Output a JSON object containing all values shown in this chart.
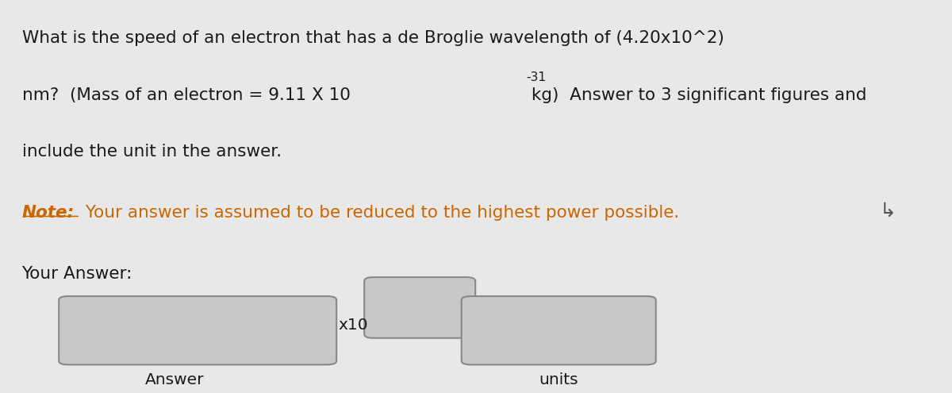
{
  "bg_color": "#e8e8e8",
  "line1": "What is the speed of an electron that has a de Broglie wavelength of (4.20x10^2)",
  "line2_part1": "nm?  (Mass of an electron = 9.11 X 10",
  "line2_sup": "-31",
  "line2_part2": " kg)  Answer to 3 significant figures and",
  "line3": "include the unit in the answer.",
  "note_bold": "Note:",
  "note_rest": " Your answer is assumed to be reduced to the highest power possible.",
  "your_answer": "Your Answer:",
  "x10_label": "x10",
  "answer_label": "Answer",
  "units_label": "units",
  "text_color": "#1a1a1a",
  "note_color": "#cc6600",
  "box_color": "#c8c8c8",
  "box_edge_color": "#888888",
  "main_fontsize": 15.5,
  "note_fontsize": 15.5,
  "label_fontsize": 14.5
}
